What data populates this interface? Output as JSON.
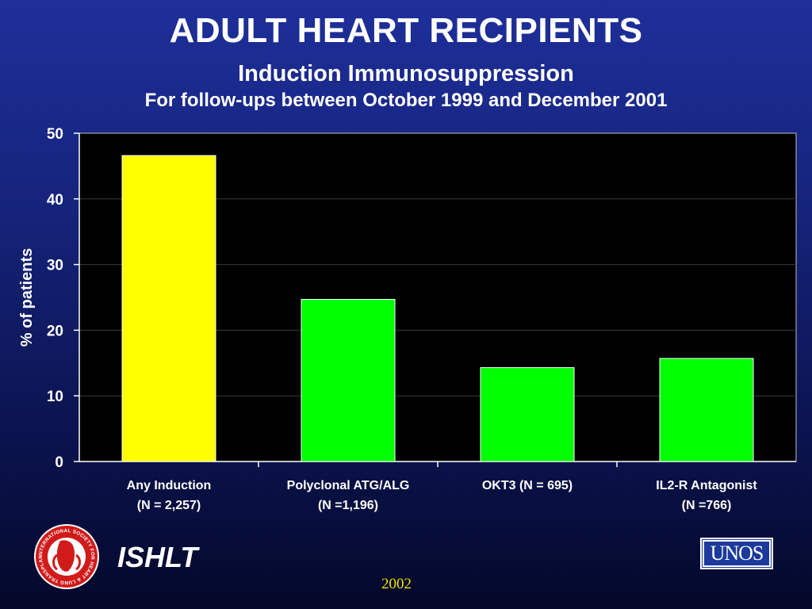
{
  "header": {
    "title": "ADULT HEART RECIPIENTS",
    "subtitle": "Induction Immunosuppression",
    "subtitle2": "For follow-ups between October 1999 and December 2001"
  },
  "chart_data": {
    "type": "bar",
    "title": "ADULT HEART RECIPIENTS",
    "xlabel": "",
    "ylabel": "% of patients",
    "ylim": [
      0,
      50
    ],
    "yticks": [
      0,
      10,
      20,
      30,
      40,
      50
    ],
    "grid": true,
    "categories": [
      {
        "label": "Any Induction",
        "sublabel": "(N = 2,257)",
        "value": 46.6,
        "color": "#ffff00"
      },
      {
        "label": "Polyclonal ATG/ALG",
        "sublabel": "(N =1,196)",
        "value": 24.7,
        "color": "#00ff00"
      },
      {
        "label": "OKT3  (N = 695)",
        "sublabel": "",
        "value": 14.3,
        "color": "#00ff00"
      },
      {
        "label": "IL2-R Antagonist",
        "sublabel": "(N =766)",
        "value": 15.7,
        "color": "#00ff00"
      }
    ],
    "plot_background": "#000000"
  },
  "footer": {
    "org_name": "ISHLT",
    "year": "2002",
    "logo_left_text": "INTERNATIONAL SOCIETY FOR HEART & LUNG TRANSPLANTATION",
    "logo_right_text": "UNOS"
  },
  "colors": {
    "background_top": "#1e2f9a",
    "background_bottom": "#04082a",
    "year_color": "#f0e000",
    "logo_red": "#d11a1a"
  }
}
